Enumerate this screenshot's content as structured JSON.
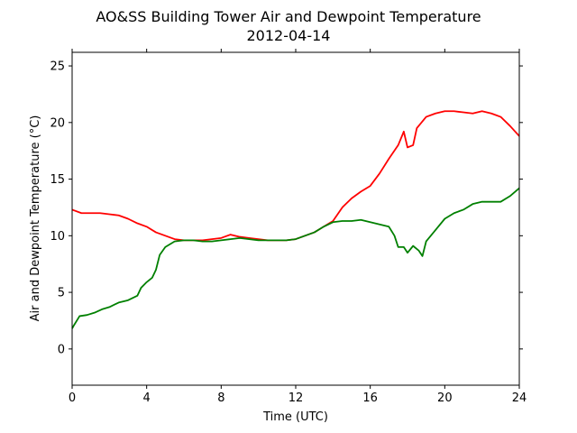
{
  "chart_data": {
    "type": "line",
    "title": "AO&SS Building Tower Air and Dewpoint Temperature",
    "subtitle": "2012-04-14",
    "xlabel": "Time (UTC)",
    "ylabel": "Air and Dewpoint Temperature (°C)",
    "xlim": [
      0,
      24
    ],
    "ylim": [
      -3.2,
      26.2
    ],
    "x_ticks": [
      0,
      4,
      8,
      12,
      16,
      20,
      24
    ],
    "y_ticks": [
      0,
      5,
      10,
      15,
      20,
      25
    ],
    "grid": false,
    "legend": "none",
    "series": [
      {
        "color": "#ff0000",
        "x": [
          0,
          0.5,
          1,
          1.5,
          2,
          2.5,
          3,
          3.5,
          4,
          4.5,
          5,
          5.5,
          6,
          6.5,
          7,
          7.5,
          8,
          8.5,
          9,
          9.5,
          10,
          10.5,
          11,
          11.5,
          12,
          12.5,
          13,
          13.5,
          14,
          14.5,
          15,
          15.5,
          16,
          16.5,
          17,
          17.5,
          17.8,
          18,
          18.3,
          18.5,
          19,
          19.5,
          20,
          20.5,
          21,
          21.5,
          22,
          22.5,
          23,
          23.5,
          24
        ],
        "y": [
          12.3,
          12.0,
          12.0,
          12.0,
          11.9,
          11.8,
          11.5,
          11.1,
          10.8,
          10.3,
          10.0,
          9.7,
          9.6,
          9.6,
          9.6,
          9.7,
          9.8,
          10.1,
          9.9,
          9.8,
          9.7,
          9.6,
          9.6,
          9.6,
          9.7,
          10.0,
          10.3,
          10.8,
          11.3,
          12.5,
          13.3,
          13.9,
          14.4,
          15.5,
          16.8,
          18.0,
          19.2,
          17.8,
          18.0,
          19.5,
          20.5,
          20.8,
          21.0,
          21.0,
          20.9,
          20.8,
          21.0,
          20.8,
          20.5,
          19.7,
          18.8
        ]
      },
      {
        "color": "#008000",
        "x": [
          0,
          0.1,
          0.4,
          0.8,
          1.2,
          1.6,
          2,
          2.5,
          3,
          3.5,
          3.7,
          4,
          4.3,
          4.5,
          4.7,
          5,
          5.5,
          6,
          6.5,
          7,
          7.5,
          8,
          8.5,
          9,
          9.5,
          10,
          10.5,
          11,
          11.5,
          12,
          12.5,
          13,
          13.5,
          14,
          14.5,
          15,
          15.5,
          16,
          16.5,
          17,
          17.3,
          17.5,
          17.8,
          18,
          18.3,
          18.6,
          18.8,
          19,
          19.5,
          20,
          20.5,
          21,
          21.5,
          22,
          22.5,
          23,
          23.5,
          24
        ],
        "y": [
          1.8,
          2.1,
          2.9,
          3.0,
          3.2,
          3.5,
          3.7,
          4.1,
          4.3,
          4.7,
          5.4,
          5.9,
          6.3,
          7.0,
          8.3,
          9.0,
          9.5,
          9.6,
          9.6,
          9.5,
          9.5,
          9.6,
          9.7,
          9.8,
          9.7,
          9.6,
          9.6,
          9.6,
          9.6,
          9.7,
          10.0,
          10.3,
          10.8,
          11.2,
          11.3,
          11.3,
          11.4,
          11.2,
          11.0,
          10.8,
          10.0,
          9.0,
          9.0,
          8.5,
          9.1,
          8.7,
          8.2,
          9.5,
          10.5,
          11.5,
          12.0,
          12.3,
          12.8,
          13.0,
          13.0,
          13.0,
          13.5,
          14.2
        ]
      }
    ]
  }
}
